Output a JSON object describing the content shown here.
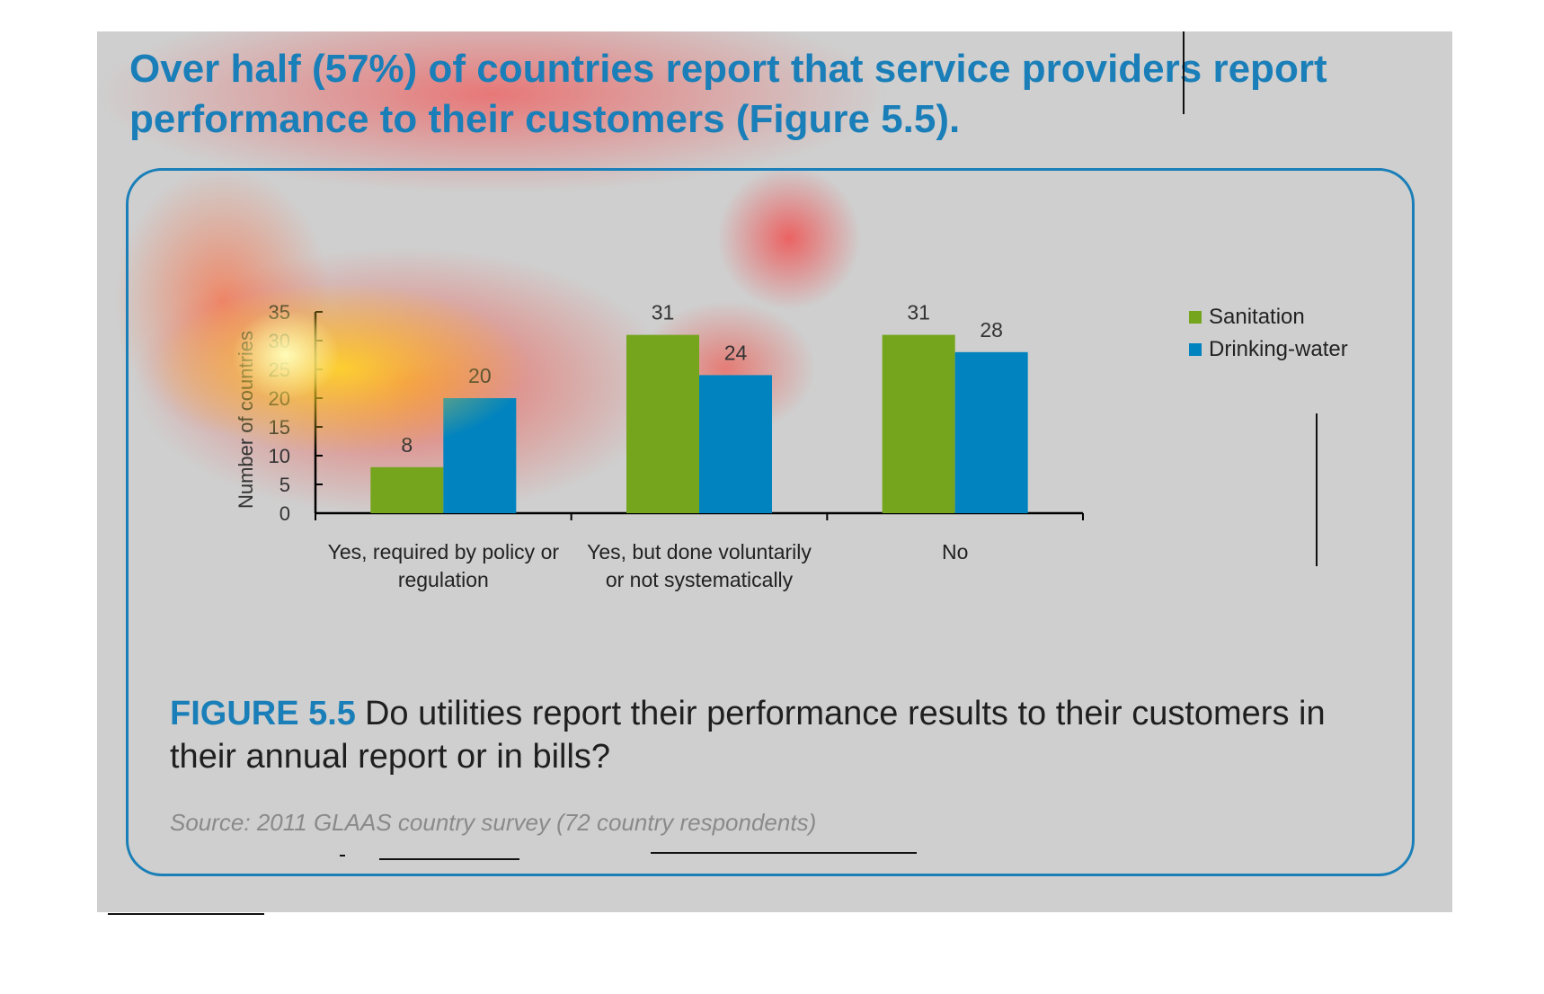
{
  "headline": "Over half (57%) of countries report that service providers report performance to their customers (Figure 5.5).",
  "figure": {
    "label": "FIGURE 5.5",
    "caption": "Do utilities report their performance results to their customers in their annual report or in bills?",
    "source": "Source: 2011 GLAAS country survey (72 country respondents)"
  },
  "colors": {
    "accent": "#1a7fb8",
    "sanitation": "#74a51c",
    "drinking_water": "#0083bf",
    "slide_background": "#cfcfcf"
  },
  "chart_data": {
    "type": "bar",
    "categories": [
      "Yes, required by policy or regulation",
      "Yes, but done voluntarily or not systematically",
      "No"
    ],
    "category_lines": [
      [
        "Yes, required by policy or",
        "regulation"
      ],
      [
        "Yes, but done voluntarily",
        "or not systematically"
      ],
      [
        "No"
      ]
    ],
    "series": [
      {
        "name": "Sanitation",
        "values": [
          8,
          31,
          31
        ]
      },
      {
        "name": "Drinking-water",
        "values": [
          20,
          24,
          28
        ]
      }
    ],
    "ylabel": "Number of countries",
    "ylim": [
      0,
      35
    ],
    "yticks": [
      0,
      5,
      10,
      15,
      20,
      25,
      30,
      35
    ],
    "data_labels": true,
    "legend_position": "top-right",
    "grid": false
  }
}
